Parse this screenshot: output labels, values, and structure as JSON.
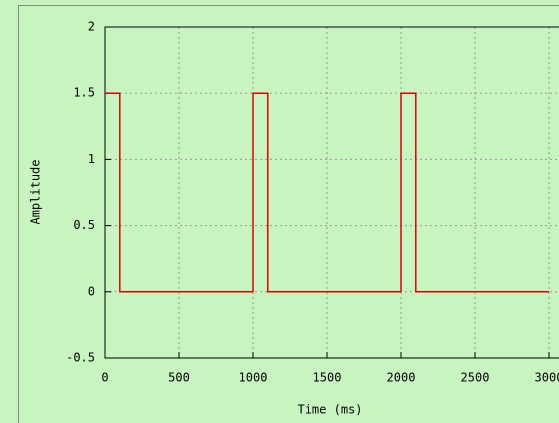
{
  "chart_data": {
    "type": "line",
    "x_label": "Time (ms)",
    "y_label": "Amplitude",
    "x": [
      0,
      100,
      100,
      1000,
      1000,
      1100,
      1100,
      2000,
      2000,
      2100,
      2100,
      3000
    ],
    "series": [
      {
        "color": "#e00000",
        "values": [
          1.5,
          1.5,
          0,
          0,
          1.5,
          1.5,
          0,
          0,
          1.5,
          1.5,
          0,
          0
        ]
      }
    ],
    "xlim": [
      0,
      3000
    ],
    "xticks": [
      0,
      500,
      1000,
      1500,
      2000,
      2500,
      3000
    ],
    "ylim": [
      -0.5,
      2
    ],
    "yticks": [
      -0.5,
      0,
      0.5,
      1,
      1.5,
      2
    ],
    "grid": true
  }
}
